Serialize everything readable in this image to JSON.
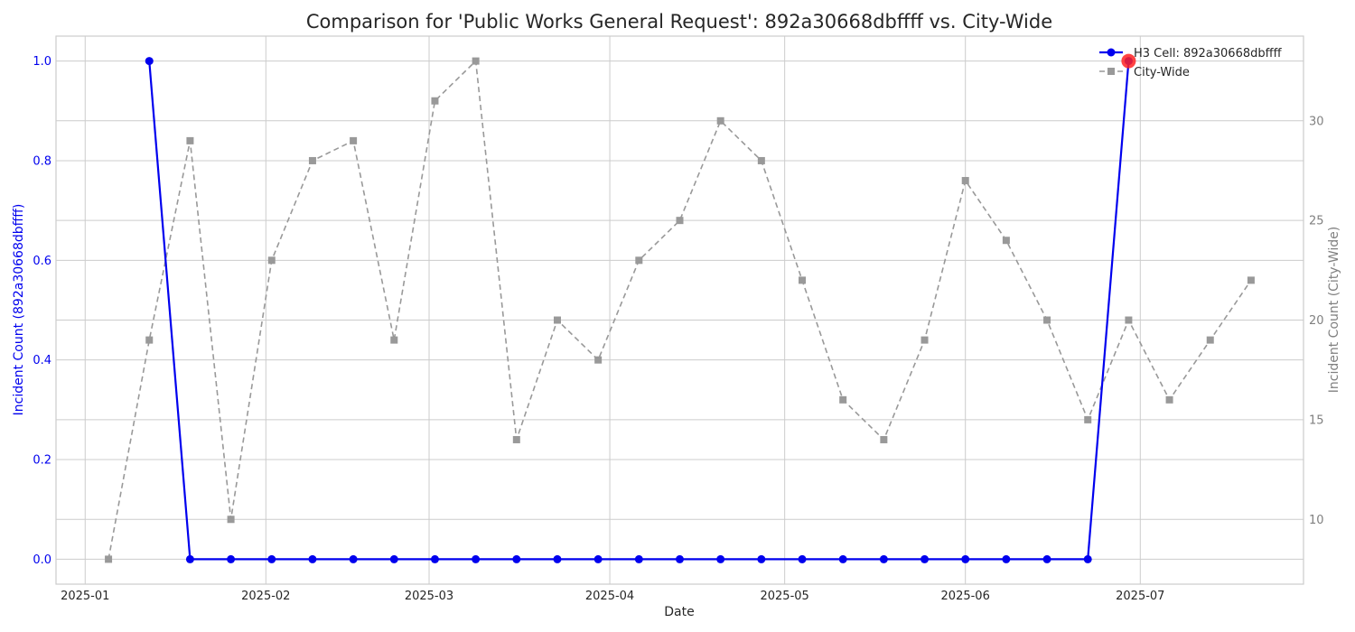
{
  "chart_data": {
    "type": "line",
    "title": "Comparison for 'Public Works General Request': 892a30668dbffff vs. City-Wide",
    "xlabel": "Date",
    "ylabel_left": "Incident Count (892a30668dbffff)",
    "ylabel_right": "Incident Count (City-Wide)",
    "x_tick_labels": [
      "2025-01",
      "2025-02",
      "2025-03",
      "2025-04",
      "2025-05",
      "2025-06",
      "2025-07"
    ],
    "x_tick_dates": [
      "2025-01-01",
      "2025-02-01",
      "2025-03-01",
      "2025-04-01",
      "2025-05-01",
      "2025-06-01",
      "2025-07-01"
    ],
    "xlim": [
      "2024-12-27",
      "2025-07-29"
    ],
    "y_left_ticks": [
      "0.0",
      "0.2",
      "0.4",
      "0.6",
      "0.8",
      "1.0"
    ],
    "y_left_lim": [
      -0.05,
      1.05
    ],
    "y_right_ticks": [
      "10",
      "15",
      "20",
      "25",
      "30"
    ],
    "y_right_lim": [
      6.75,
      34.25
    ],
    "grid": true,
    "legend_position": "top-right",
    "colors": {
      "h3": "#0000ee",
      "city": "#999999",
      "highlight": "#ff2222",
      "text_left": "#0000ee",
      "text_right": "#808080"
    },
    "series": [
      {
        "name": "H3 Cell: 892a30668dbffff",
        "axis": "left",
        "style": "solid-circle",
        "x": [
          "2025-01-12",
          "2025-01-19",
          "2025-01-26",
          "2025-02-02",
          "2025-02-09",
          "2025-02-16",
          "2025-02-23",
          "2025-03-02",
          "2025-03-09",
          "2025-03-16",
          "2025-03-23",
          "2025-03-30",
          "2025-04-06",
          "2025-04-13",
          "2025-04-20",
          "2025-04-27",
          "2025-05-04",
          "2025-05-11",
          "2025-05-18",
          "2025-05-25",
          "2025-06-01",
          "2025-06-08",
          "2025-06-15",
          "2025-06-22",
          "2025-06-29"
        ],
        "values": [
          1,
          0,
          0,
          0,
          0,
          0,
          0,
          0,
          0,
          0,
          0,
          0,
          0,
          0,
          0,
          0,
          0,
          0,
          0,
          0,
          0,
          0,
          0,
          0,
          1
        ]
      },
      {
        "name": "City-Wide",
        "axis": "right",
        "style": "dashed-square",
        "x": [
          "2025-01-05",
          "2025-01-12",
          "2025-01-19",
          "2025-01-26",
          "2025-02-02",
          "2025-02-09",
          "2025-02-16",
          "2025-02-23",
          "2025-03-02",
          "2025-03-09",
          "2025-03-16",
          "2025-03-23",
          "2025-03-30",
          "2025-04-06",
          "2025-04-13",
          "2025-04-20",
          "2025-04-27",
          "2025-05-04",
          "2025-05-11",
          "2025-05-18",
          "2025-05-25",
          "2025-06-01",
          "2025-06-08",
          "2025-06-15",
          "2025-06-22",
          "2025-06-29",
          "2025-07-06",
          "2025-07-13",
          "2025-07-20"
        ],
        "values": [
          8,
          19,
          29,
          10,
          23,
          28,
          29,
          19,
          31,
          33,
          14,
          20,
          18,
          23,
          25,
          30,
          28,
          22,
          16,
          14,
          19,
          27,
          24,
          20,
          15,
          20,
          16,
          19,
          22
        ]
      }
    ],
    "highlight_point": {
      "x": "2025-06-29",
      "value": 1
    }
  }
}
